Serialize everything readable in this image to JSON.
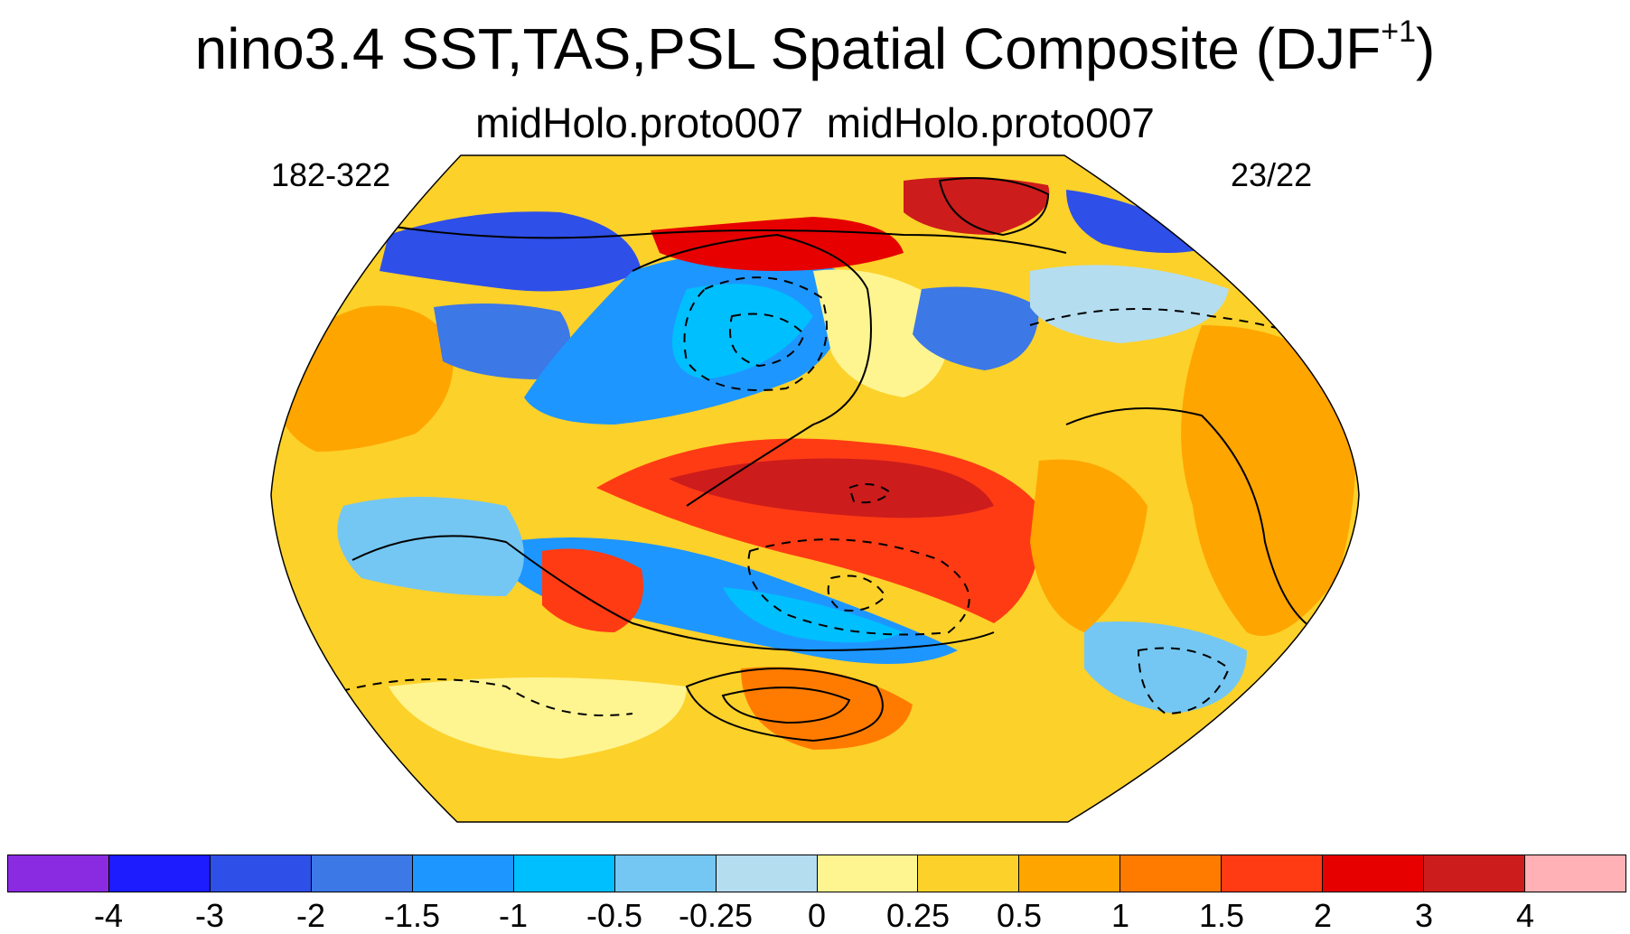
{
  "title": {
    "main": "nino3.4 SST,TAS,PSL Spatial Composite (DJF",
    "superscript": "+1",
    "close": ")"
  },
  "subtitle": "midHolo.proto007  midHolo.proto007",
  "left_label": "182-322",
  "right_label": "23/22",
  "map": {
    "projection": "Robinson",
    "center_longitude": 180,
    "fill_field": "SST/TAS composite anomaly",
    "contour_field": "PSL composite anomaly",
    "negative_contours": "dashed",
    "positive_contours": "solid"
  },
  "colorbar": {
    "colors": [
      "#8a2be2",
      "#1c1cff",
      "#2e4fe8",
      "#3c78e6",
      "#1e96ff",
      "#00bfff",
      "#74c7f2",
      "#b4ddf0",
      "#fff590",
      "#fcd12a",
      "#ffa500",
      "#ff7b00",
      "#ff3b14",
      "#e60000",
      "#cd1c1c",
      "#ffb1b5"
    ],
    "labels": [
      "-4",
      "-3",
      "-2",
      "-1.5",
      "-1",
      "-0.5",
      "-0.25",
      "0",
      "0.25",
      "0.5",
      "1",
      "1.5",
      "2",
      "3",
      "4"
    ]
  }
}
